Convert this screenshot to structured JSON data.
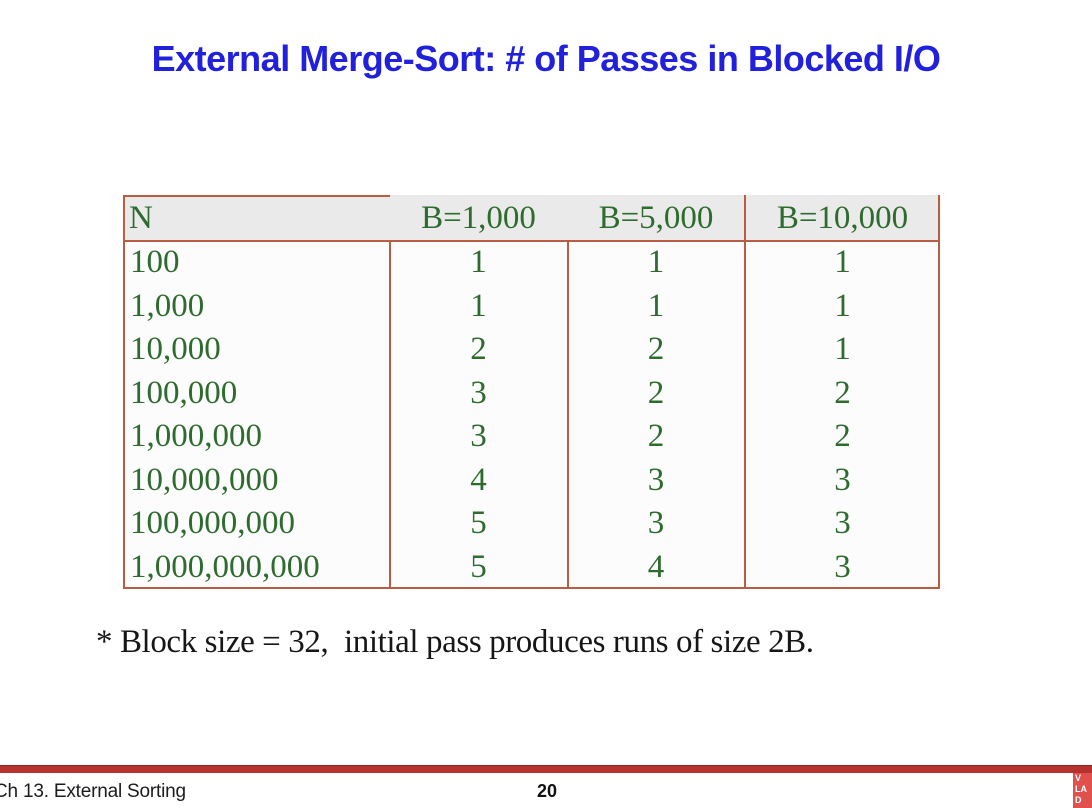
{
  "title": "External Merge-Sort: # of Passes in Blocked I/O",
  "chart_data": {
    "type": "table",
    "title": "External Merge-Sort: # of Passes in Blocked I/O",
    "columns": [
      "N",
      "B=1,000",
      "B=5,000",
      "B=10,000"
    ],
    "rows": [
      [
        "100",
        "1",
        "1",
        "1"
      ],
      [
        "1,000",
        "1",
        "1",
        "1"
      ],
      [
        "10,000",
        "2",
        "2",
        "1"
      ],
      [
        "100,000",
        "3",
        "2",
        "2"
      ],
      [
        "1,000,000",
        "3",
        "2",
        "2"
      ],
      [
        "10,000,000",
        "4",
        "3",
        "3"
      ],
      [
        "100,000,000",
        "5",
        "3",
        "3"
      ],
      [
        "1,000,000,000",
        "5",
        "4",
        "3"
      ]
    ]
  },
  "note": "* Block size = 32,  initial pass produces runs of size 2B.",
  "footer": {
    "chapter": "Ch 13. External Sorting",
    "page_number": "20",
    "badge_lines": [
      "V",
      "LA",
      "D"
    ]
  },
  "colors": {
    "title_blue": "#2020dd",
    "table_text_green": "#2e6b2e",
    "table_border_red": "#b85c42",
    "header_background": "#ebeaea",
    "footer_bar_red": "#b5322e",
    "corner_badge_red": "#e0514e"
  }
}
